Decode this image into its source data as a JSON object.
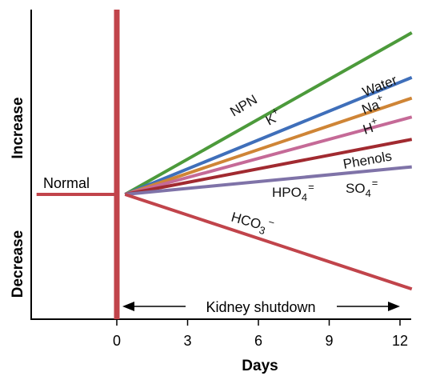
{
  "chart_data": {
    "type": "line",
    "xlabel": "Days",
    "ylabel_up": "Increase",
    "ylabel_down": "Decrease",
    "x_ticks": [
      0,
      3,
      6,
      9,
      12
    ],
    "xlim": [
      -3.4,
      12.5
    ],
    "ylim": [
      -10,
      10
    ],
    "baseline": {
      "label": "Normal",
      "x": [
        -3.4,
        0
      ],
      "y": [
        0,
        0
      ],
      "color": "#c1444b"
    },
    "shutdown_marker": {
      "x": 0,
      "color": "#c1444b",
      "label": "Kidney shutdown"
    },
    "series": [
      {
        "name": "NPN",
        "x": [
          0,
          12.5
        ],
        "y": [
          0,
          9.4
        ],
        "color": "#4c9a3b"
      },
      {
        "name": "K+",
        "x": [
          0,
          12.5
        ],
        "y": [
          0,
          6.8
        ],
        "color": "#3f6fba"
      },
      {
        "name": "Water",
        "x": [
          0,
          12.5
        ],
        "y": [
          0,
          5.6
        ],
        "color": "#cf8536"
      },
      {
        "name": "Na+",
        "x": [
          0,
          12.5
        ],
        "y": [
          0,
          4.5
        ],
        "color": "#c56a97"
      },
      {
        "name": "H+",
        "x": [
          0,
          12.5
        ],
        "y": [
          0,
          3.2
        ],
        "color": "#a12a30"
      },
      {
        "name": "Phenols",
        "x": [
          0,
          12.5
        ],
        "y": [
          0,
          1.6
        ],
        "color": "#7f73a8"
      },
      {
        "name": "HPO4=",
        "x": [
          0,
          12.5
        ],
        "y": [
          0,
          1.6
        ],
        "color": "#7f73a8"
      },
      {
        "name": "SO4=",
        "x": [
          0,
          12.5
        ],
        "y": [
          0,
          1.6
        ],
        "color": "#7f73a8"
      },
      {
        "name": "HCO3-",
        "x": [
          0,
          12.5
        ],
        "y": [
          0,
          -5.5
        ],
        "color": "#c1444b"
      }
    ],
    "labels": [
      {
        "key": "npn",
        "base": "NPN",
        "sup": "",
        "sub": "",
        "rotate": true
      },
      {
        "key": "k",
        "base": "K",
        "sup": "+",
        "sub": "",
        "rotate": true
      },
      {
        "key": "water",
        "base": "Water",
        "sup": "",
        "sub": "",
        "rotate": true
      },
      {
        "key": "na",
        "base": "Na",
        "sup": "+",
        "sub": "",
        "rotate": true
      },
      {
        "key": "h",
        "base": "H",
        "sup": "+",
        "sub": "",
        "rotate": true
      },
      {
        "key": "phenols",
        "base": "Phenols",
        "sup": "",
        "sub": "",
        "rotate": true
      },
      {
        "key": "hpo4",
        "base": "HPO",
        "sub": "4",
        "sup": "=",
        "rotate": false
      },
      {
        "key": "so4",
        "base": "SO",
        "sub": "4",
        "sup": "=",
        "rotate": false
      },
      {
        "key": "hco3",
        "base": "HCO",
        "sub": "3",
        "sup": "−",
        "rotate": true
      }
    ]
  }
}
